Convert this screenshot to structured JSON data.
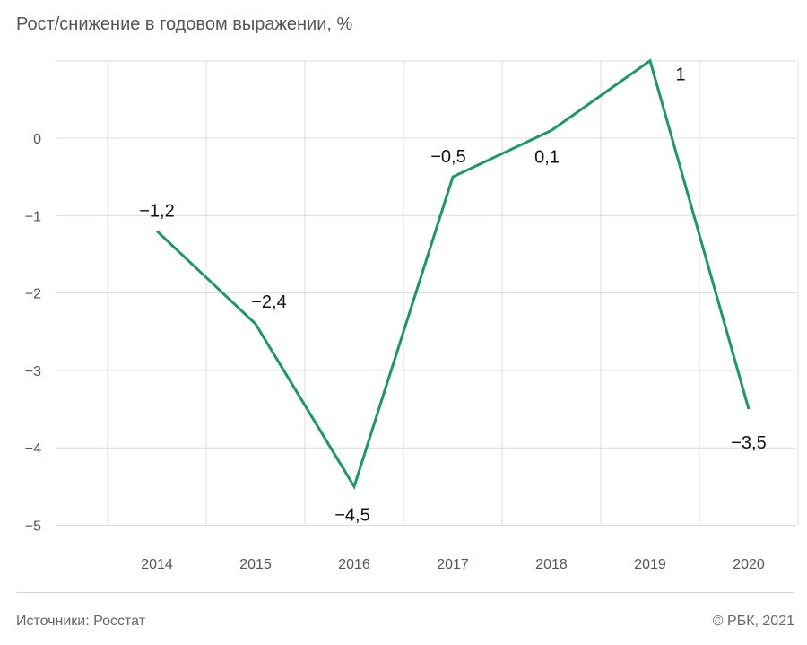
{
  "header": {
    "title": "Рост/снижение в годовом выражении, %"
  },
  "footer": {
    "source": "Источники: Росстат",
    "copyright": "© РБК, 2021"
  },
  "chart_data": {
    "type": "line",
    "title": "Рост/снижение в годовом выражении, %",
    "xlabel": "",
    "ylabel": "",
    "categories": [
      "2014",
      "2015",
      "2016",
      "2017",
      "2018",
      "2019",
      "2020"
    ],
    "series": [
      {
        "values": [
          -1.2,
          -2.4,
          -4.5,
          -0.5,
          0.1,
          1,
          -3.5
        ]
      }
    ],
    "data_labels": [
      "−1,2",
      "−2,4",
      "−4,5",
      "−0,5",
      "0,1",
      "1",
      "−3,5"
    ],
    "y_ticks": [
      0,
      -1,
      -2,
      -3,
      -4,
      -5
    ],
    "y_tick_labels": [
      "0",
      "−1",
      "−2",
      "−3",
      "−4",
      "−5"
    ],
    "ylim": [
      -5,
      1
    ],
    "grid": true,
    "line_color": "#1a9960"
  }
}
